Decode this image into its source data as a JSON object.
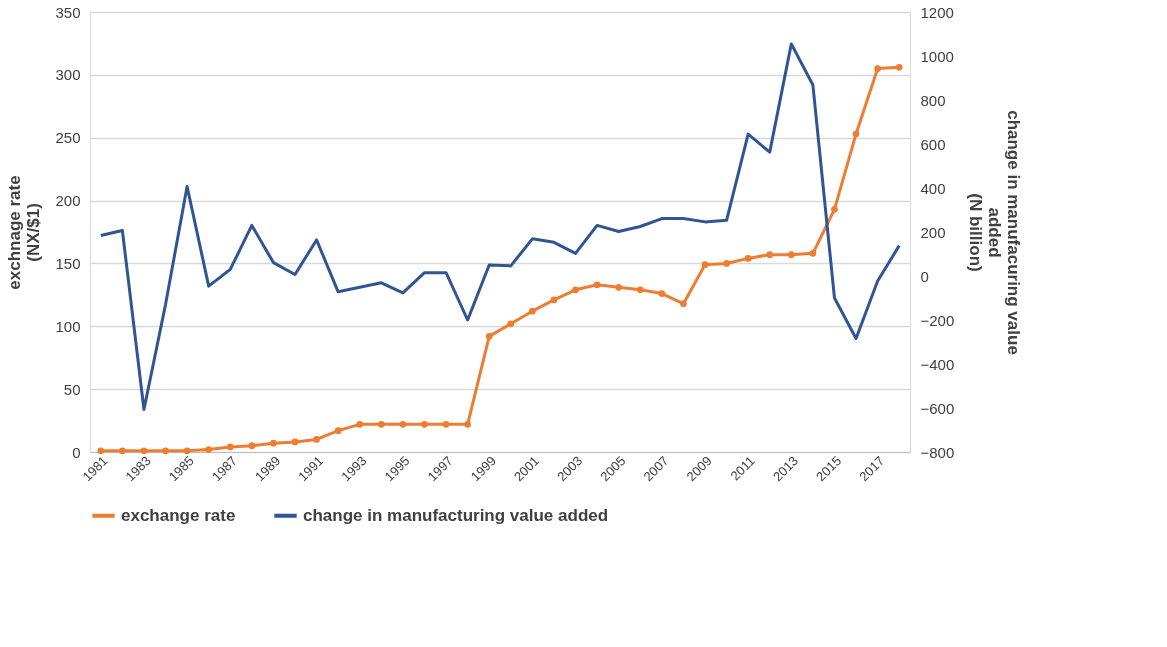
{
  "chart_data": {
    "type": "line",
    "categories": [
      "1981",
      null,
      "1983",
      null,
      "1985",
      null,
      "1987",
      null,
      "1989",
      null,
      "1991",
      null,
      "1993",
      null,
      "1995",
      null,
      "1997",
      null,
      "1999",
      null,
      "2001",
      null,
      "2003",
      null,
      "2005",
      null,
      "2007",
      null,
      "2009",
      null,
      "2011",
      null,
      "2013",
      null,
      "2015",
      null,
      "2017",
      null
    ],
    "ylabel": "exchnage rate\n(NX/$1)",
    "y2label": "change in manufacuring value\nadded\n(N billion)",
    "ylim": [
      0,
      350
    ],
    "yticks": [
      0,
      50,
      100,
      150,
      200,
      250,
      300,
      350
    ],
    "y2lim": [
      -800,
      1200
    ],
    "y2ticks": [
      -800,
      -600,
      -400,
      -200,
      0,
      200,
      400,
      600,
      800,
      1000,
      1200
    ],
    "grid": "y",
    "legend": "bottom",
    "series": [
      {
        "name": "exchange rate",
        "color": "#ed7d31",
        "marker": "circle",
        "values": [
          1,
          1,
          1,
          1,
          1,
          2,
          4,
          5,
          7,
          8,
          10,
          17,
          22,
          22,
          22,
          22,
          22,
          22,
          92,
          102,
          112,
          121,
          129,
          133,
          131,
          129,
          126,
          118,
          149,
          150,
          154,
          157,
          157,
          158,
          193,
          253,
          305,
          306
        ]
      },
      {
        "name": "change in manufacturing value added",
        "color": "#2f5597",
        "marker": "none",
        "axis": "y2",
        "values": [
          184,
          207,
          -607,
          -130,
          407,
          -46,
          30,
          230,
          61,
          7,
          164,
          -72,
          -51,
          -31,
          -77,
          15,
          15,
          -200,
          50,
          46,
          169,
          153,
          103,
          230,
          202,
          225,
          261,
          261,
          246,
          253,
          645,
          563,
          1055,
          868,
          -100,
          -284,
          -23,
          138
        ]
      }
    ]
  }
}
